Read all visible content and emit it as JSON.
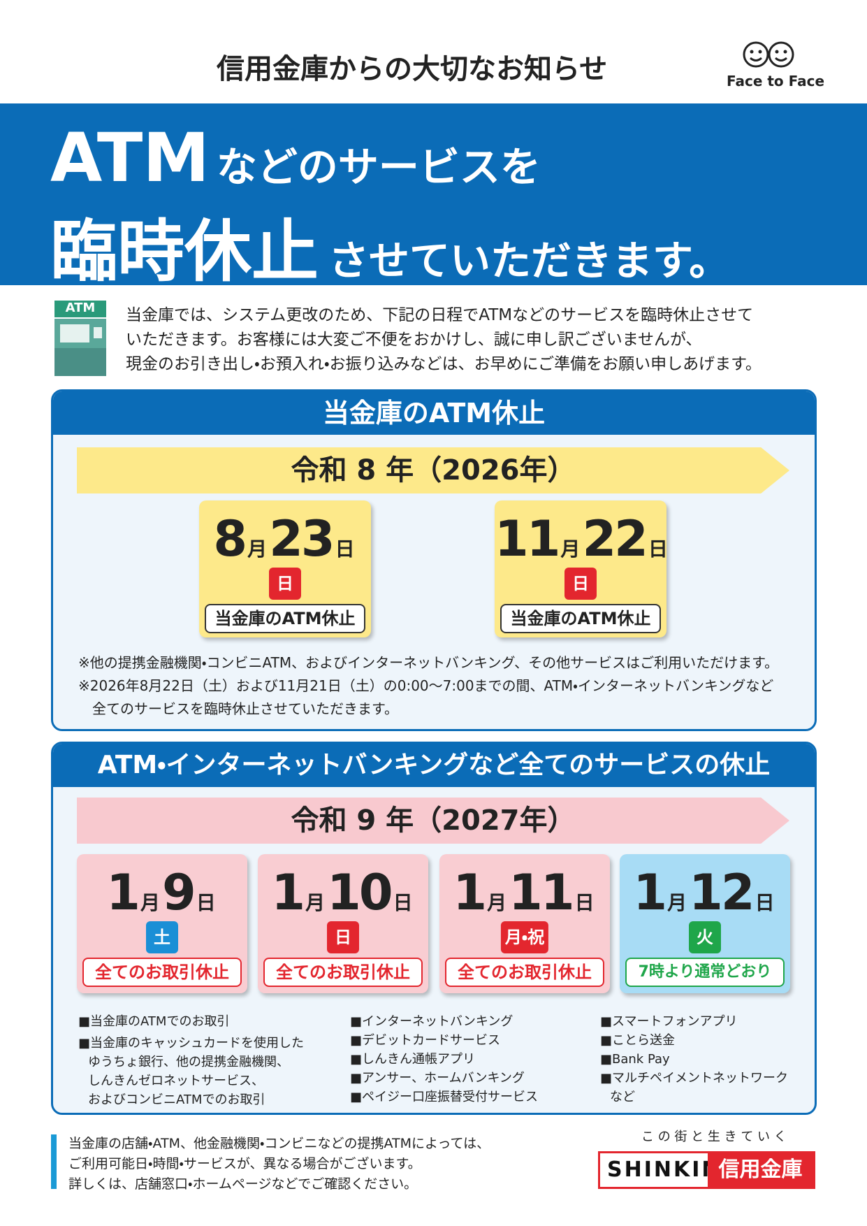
{
  "header": {
    "title": "信用金庫からの大切なお知らせ",
    "logo": "Face to Face"
  },
  "banner": {
    "line1_big": "ATM",
    "line1_rest": "などのサービスを",
    "line2_big": "臨時休止",
    "line2_rest": "させていただきます。"
  },
  "intro": {
    "icon_label": "ATM",
    "lines": [
      "当金庫では、システム更改のため、下記の日程でATMなどのサービスを臨時休止させて",
      "いただきます。お客様には大変ご不便をおかけし、誠に申し訳ございませんが、",
      "現金のお引き出し・お預入れ・お振り込みなどは、お早めにご準備をお願い申しあげます。"
    ]
  },
  "section1": {
    "title": "当金庫のATM休止",
    "year": "令和 8 年（2026年）",
    "dates": [
      {
        "month": "8",
        "month_unit": "月",
        "day": "23",
        "day_unit": "日",
        "weekday": "日",
        "status": "当金庫のATM休止"
      },
      {
        "month": "11",
        "month_unit": "月",
        "day": "22",
        "day_unit": "日",
        "weekday": "日",
        "status": "当金庫のATM休止"
      }
    ],
    "notes": [
      "※他の提携金融機関・コンビニATM、およびインターネットバンキング、その他サービスはご利用いただけます。",
      "※2026年8月22日（土）および11月21日（土）の0:00〜7:00までの間、ATM・インターネットバンキングなど",
      "全てのサービスを臨時休止させていただきます。"
    ]
  },
  "section2": {
    "title": "ATM・インターネットバンキングなど全てのサービスの休止",
    "year": "令和 9 年（2027年）",
    "dates": [
      {
        "month": "1",
        "month_unit": "月",
        "day": "9",
        "day_unit": "日",
        "weekday": "土",
        "status": "全てのお取引休止"
      },
      {
        "month": "1",
        "month_unit": "月",
        "day": "10",
        "day_unit": "日",
        "weekday": "日",
        "status": "全てのお取引休止"
      },
      {
        "month": "1",
        "month_unit": "月",
        "day": "11",
        "day_unit": "日",
        "weekday": "月・祝",
        "status": "全てのお取引休止"
      },
      {
        "month": "1",
        "month_unit": "月",
        "day": "12",
        "day_unit": "日",
        "weekday": "火",
        "status": "7時より通常どおり"
      }
    ],
    "lists": [
      [
        "■当金庫のATMでのお取引",
        "■当金庫のキャッシュカードを使用した",
        "ゆうちょ銀行、他の提携金融機関、",
        "しんきんゼロネットサービス、",
        "およびコンビニATMでのお取引"
      ],
      [
        "■インターネットバンキング",
        "■デビットカードサービス",
        "■しんきん通帳アプリ",
        "■アンサー、ホームバンキング",
        "■ペイジー口座振替受付サービス"
      ],
      [
        "■スマートフォンアプリ",
        "■ことら送金",
        "■Bank Pay",
        "■マルチペイメントネットワーク",
        "など"
      ]
    ]
  },
  "footer": {
    "lines": [
      "当金庫の店舗・ATM、他金融機関・コンビニなどの提携ATMによっては、",
      "ご利用可能日・時間・サービスが、異なる場合がございます。",
      "詳しくは、店舗窓口・ホームページなどでご確認ください。"
    ],
    "tagline": "こ の 街 と 生 き て い く",
    "brand_en": "SHINKIN",
    "brand_jp": "信用金庫"
  }
}
